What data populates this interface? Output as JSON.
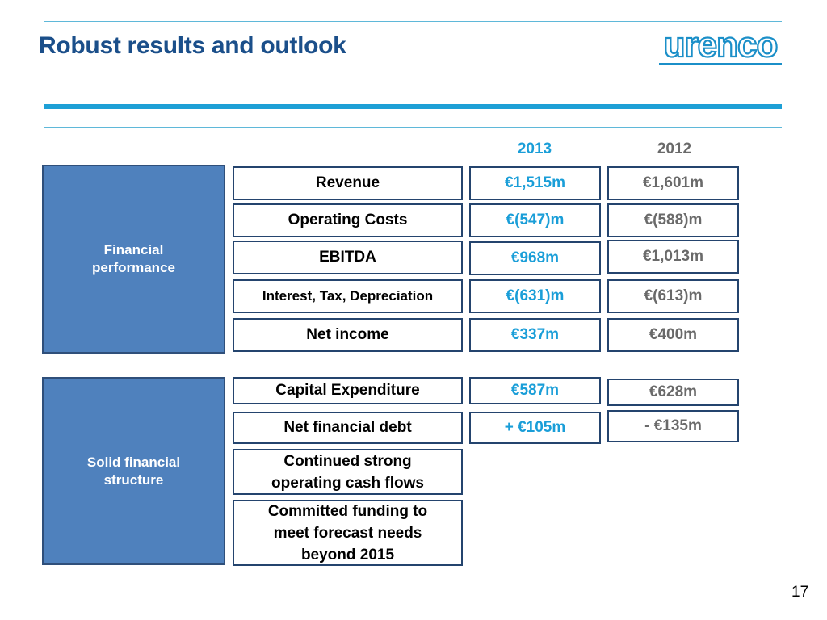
{
  "slide": {
    "title": "Robust results and outlook",
    "logo_text": "urenco",
    "page_number": "17"
  },
  "columns": {
    "year_2013": "2013",
    "year_2012": "2012"
  },
  "sections": {
    "financial_performance": "Financial performance",
    "solid_financial_structure": "Solid financial structure"
  },
  "rows": [
    {
      "label": "Revenue",
      "v2013": "€1,515m",
      "v2012": "€1,601m"
    },
    {
      "label": "Operating Costs",
      "v2013": "€(547)m",
      "v2012": "€(588)m"
    },
    {
      "label": "EBITDA",
      "v2013": "€968m",
      "v2012": "€1,013m"
    },
    {
      "label": "Interest, Tax, Depreciation",
      "v2013": "€(631)m",
      "v2012": "€(613)m"
    },
    {
      "label": "Net income",
      "v2013": "€337m",
      "v2012": "€400m"
    },
    {
      "label": "Capital Expenditure",
      "v2013": "€587m",
      "v2012": "€628m"
    },
    {
      "label": "Net financial debt",
      "v2013": "+ €105m",
      "v2012": "- €135m"
    },
    {
      "label": "Continued strong operating cash flows"
    },
    {
      "label": "Committed funding to meet forecast needs beyond 2015"
    }
  ],
  "colors": {
    "title": "#1b4f8a",
    "accent": "#1ea0d6",
    "category_fill": "#4f81bd",
    "value_2013": "#1a9ed8",
    "value_2012": "#6a6a6a"
  }
}
